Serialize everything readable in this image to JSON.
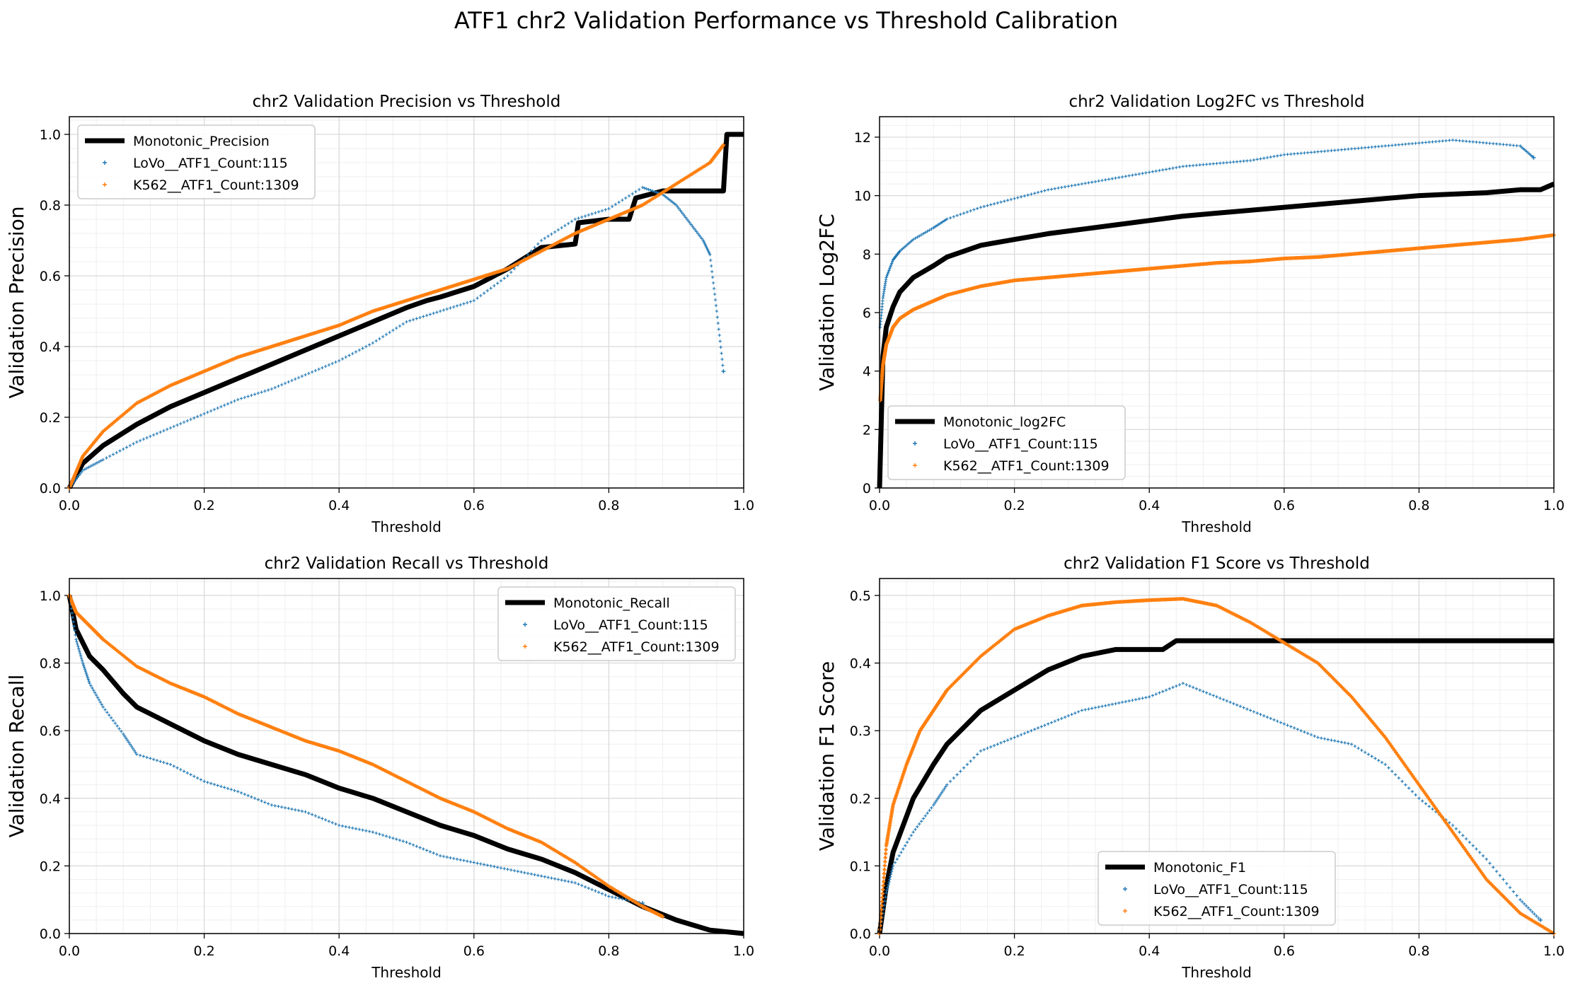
{
  "figure": {
    "suptitle": "ATF1 chr2 Validation Performance vs Threshold Calibration"
  },
  "colors": {
    "monotonic": "#000000",
    "lovo": "#1f77b4",
    "k562": "#ff7f0e",
    "grid": "#d9d9d9",
    "minor_grid": "#efefef"
  },
  "chart_data": [
    {
      "type": "scatter",
      "title": "chr2 Validation Precision vs Threshold",
      "xlabel": "Threshold",
      "ylabel": "Validation Precision",
      "xlim": [
        0,
        1
      ],
      "ylim": [
        0,
        1.05
      ],
      "xticks": [
        "0.0",
        "0.2",
        "0.4",
        "0.6",
        "0.8",
        "1.0"
      ],
      "xtick_values": [
        0,
        0.2,
        0.4,
        0.6,
        0.8,
        1.0
      ],
      "yticks": [
        "0.0",
        "0.2",
        "0.4",
        "0.6",
        "0.8",
        "1.0"
      ],
      "ytick_values": [
        0,
        0.2,
        0.4,
        0.6,
        0.8,
        1.0
      ],
      "legend_loc": "upper-left",
      "grid": true,
      "series": [
        {
          "name": "Monotonic_Precision",
          "kind": "line",
          "x": [
            0,
            0.02,
            0.05,
            0.1,
            0.15,
            0.2,
            0.25,
            0.3,
            0.35,
            0.4,
            0.45,
            0.5,
            0.53,
            0.55,
            0.6,
            0.65,
            0.7,
            0.75,
            0.755,
            0.8,
            0.83,
            0.84,
            0.88,
            0.95,
            0.97,
            0.975,
            1.0
          ],
          "y": [
            0.0,
            0.07,
            0.12,
            0.18,
            0.23,
            0.27,
            0.31,
            0.35,
            0.39,
            0.43,
            0.47,
            0.51,
            0.53,
            0.54,
            0.57,
            0.62,
            0.68,
            0.69,
            0.75,
            0.76,
            0.76,
            0.82,
            0.84,
            0.84,
            0.84,
            1.0,
            1.0
          ]
        },
        {
          "name": "LoVo__ATF1_Count:115",
          "kind": "scatter",
          "x": [
            0,
            0.02,
            0.05,
            0.1,
            0.15,
            0.2,
            0.25,
            0.3,
            0.35,
            0.4,
            0.45,
            0.5,
            0.55,
            0.6,
            0.65,
            0.7,
            0.75,
            0.8,
            0.85,
            0.88,
            0.9,
            0.92,
            0.94,
            0.95,
            0.96,
            0.97
          ],
          "y": [
            0.0,
            0.05,
            0.08,
            0.13,
            0.17,
            0.21,
            0.25,
            0.28,
            0.32,
            0.36,
            0.41,
            0.47,
            0.5,
            0.53,
            0.6,
            0.7,
            0.76,
            0.79,
            0.85,
            0.83,
            0.8,
            0.75,
            0.7,
            0.66,
            0.5,
            0.33
          ]
        },
        {
          "name": "K562__ATF1_Count:1309",
          "kind": "scatter",
          "x": [
            0,
            0.02,
            0.05,
            0.1,
            0.15,
            0.2,
            0.25,
            0.3,
            0.35,
            0.4,
            0.45,
            0.5,
            0.55,
            0.6,
            0.65,
            0.7,
            0.75,
            0.8,
            0.85,
            0.9,
            0.95,
            0.97
          ],
          "y": [
            0.0,
            0.09,
            0.16,
            0.24,
            0.29,
            0.33,
            0.37,
            0.4,
            0.43,
            0.46,
            0.5,
            0.53,
            0.56,
            0.59,
            0.62,
            0.67,
            0.72,
            0.76,
            0.8,
            0.86,
            0.92,
            0.97
          ]
        }
      ]
    },
    {
      "type": "scatter",
      "title": "chr2 Validation Log2FC vs Threshold",
      "xlabel": "Threshold",
      "ylabel": "Validation Log2FC",
      "xlim": [
        0,
        1
      ],
      "ylim": [
        0,
        12.7
      ],
      "xticks": [
        "0.0",
        "0.2",
        "0.4",
        "0.6",
        "0.8",
        "1.0"
      ],
      "xtick_values": [
        0,
        0.2,
        0.4,
        0.6,
        0.8,
        1.0
      ],
      "yticks": [
        "0",
        "2",
        "4",
        "6",
        "8",
        "10",
        "12"
      ],
      "ytick_values": [
        0,
        2,
        4,
        6,
        8,
        10,
        12
      ],
      "legend_loc": "lower-left",
      "grid": true,
      "series": [
        {
          "name": "Monotonic_log2FC",
          "kind": "line",
          "x": [
            0,
            0.005,
            0.01,
            0.02,
            0.03,
            0.05,
            0.08,
            0.1,
            0.15,
            0.2,
            0.25,
            0.3,
            0.35,
            0.4,
            0.45,
            0.5,
            0.55,
            0.6,
            0.65,
            0.7,
            0.75,
            0.8,
            0.85,
            0.9,
            0.95,
            0.98,
            1.0
          ],
          "y": [
            0.0,
            4.5,
            5.5,
            6.2,
            6.7,
            7.2,
            7.6,
            7.9,
            8.3,
            8.5,
            8.7,
            8.85,
            9.0,
            9.15,
            9.3,
            9.4,
            9.5,
            9.6,
            9.7,
            9.8,
            9.9,
            10.0,
            10.05,
            10.1,
            10.2,
            10.2,
            10.4
          ]
        },
        {
          "name": "LoVo__ATF1_Count:115",
          "kind": "scatter",
          "x": [
            0.001,
            0.005,
            0.01,
            0.02,
            0.03,
            0.05,
            0.08,
            0.1,
            0.15,
            0.2,
            0.25,
            0.3,
            0.35,
            0.4,
            0.45,
            0.5,
            0.55,
            0.6,
            0.65,
            0.7,
            0.75,
            0.8,
            0.85,
            0.9,
            0.95,
            0.97
          ],
          "y": [
            5.5,
            6.5,
            7.2,
            7.8,
            8.1,
            8.5,
            8.9,
            9.2,
            9.6,
            9.9,
            10.2,
            10.4,
            10.6,
            10.8,
            11.0,
            11.1,
            11.2,
            11.4,
            11.5,
            11.6,
            11.7,
            11.8,
            11.9,
            11.8,
            11.7,
            11.3
          ]
        },
        {
          "name": "K562__ATF1_Count:1309",
          "kind": "scatter",
          "x": [
            0.001,
            0.005,
            0.01,
            0.02,
            0.03,
            0.05,
            0.08,
            0.1,
            0.15,
            0.2,
            0.25,
            0.3,
            0.35,
            0.4,
            0.45,
            0.5,
            0.55,
            0.6,
            0.65,
            0.7,
            0.75,
            0.8,
            0.85,
            0.9,
            0.95,
            1.0
          ],
          "y": [
            3.0,
            4.2,
            4.9,
            5.5,
            5.8,
            6.1,
            6.4,
            6.6,
            6.9,
            7.1,
            7.2,
            7.3,
            7.4,
            7.5,
            7.6,
            7.7,
            7.75,
            7.85,
            7.9,
            8.0,
            8.1,
            8.2,
            8.3,
            8.4,
            8.5,
            8.65
          ]
        }
      ]
    },
    {
      "type": "scatter",
      "title": "chr2 Validation Recall vs Threshold",
      "xlabel": "Threshold",
      "ylabel": "Validation Recall",
      "xlim": [
        0,
        1
      ],
      "ylim": [
        0,
        1.05
      ],
      "xticks": [
        "0.0",
        "0.2",
        "0.4",
        "0.6",
        "0.8",
        "1.0"
      ],
      "xtick_values": [
        0,
        0.2,
        0.4,
        0.6,
        0.8,
        1.0
      ],
      "yticks": [
        "0.0",
        "0.2",
        "0.4",
        "0.6",
        "0.8",
        "1.0"
      ],
      "ytick_values": [
        0,
        0.2,
        0.4,
        0.6,
        0.8,
        1.0
      ],
      "legend_loc": "upper-right",
      "grid": true,
      "series": [
        {
          "name": "Monotonic_Recall",
          "kind": "line",
          "x": [
            0,
            0.01,
            0.03,
            0.05,
            0.08,
            0.1,
            0.15,
            0.2,
            0.25,
            0.3,
            0.35,
            0.4,
            0.45,
            0.5,
            0.55,
            0.6,
            0.65,
            0.7,
            0.75,
            0.8,
            0.85,
            0.9,
            0.95,
            1.0
          ],
          "y": [
            1.0,
            0.9,
            0.82,
            0.78,
            0.71,
            0.67,
            0.62,
            0.57,
            0.53,
            0.5,
            0.47,
            0.43,
            0.4,
            0.36,
            0.32,
            0.29,
            0.25,
            0.22,
            0.18,
            0.13,
            0.08,
            0.04,
            0.01,
            0.0
          ]
        },
        {
          "name": "LoVo__ATF1_Count:115",
          "kind": "scatter",
          "x": [
            0,
            0.01,
            0.02,
            0.03,
            0.05,
            0.08,
            0.1,
            0.15,
            0.2,
            0.25,
            0.3,
            0.35,
            0.4,
            0.45,
            0.5,
            0.55,
            0.6,
            0.65,
            0.7,
            0.75,
            0.8,
            0.85
          ],
          "y": [
            1.0,
            0.87,
            0.8,
            0.74,
            0.67,
            0.59,
            0.53,
            0.5,
            0.45,
            0.42,
            0.38,
            0.36,
            0.32,
            0.3,
            0.27,
            0.23,
            0.21,
            0.19,
            0.17,
            0.15,
            0.11,
            0.09
          ]
        },
        {
          "name": "K562__ATF1_Count:1309",
          "kind": "scatter",
          "x": [
            0,
            0.01,
            0.03,
            0.05,
            0.1,
            0.15,
            0.2,
            0.25,
            0.3,
            0.35,
            0.4,
            0.45,
            0.5,
            0.55,
            0.6,
            0.65,
            0.7,
            0.75,
            0.8,
            0.85,
            0.88
          ],
          "y": [
            1.0,
            0.95,
            0.91,
            0.87,
            0.79,
            0.74,
            0.7,
            0.65,
            0.61,
            0.57,
            0.54,
            0.5,
            0.45,
            0.4,
            0.36,
            0.31,
            0.27,
            0.21,
            0.14,
            0.08,
            0.05
          ]
        }
      ]
    },
    {
      "type": "scatter",
      "title": "chr2 Validation F1 Score vs Threshold",
      "xlabel": "Threshold",
      "ylabel": "Validation F1 Score",
      "xlim": [
        0,
        1
      ],
      "ylim": [
        0,
        0.525
      ],
      "xticks": [
        "0.0",
        "0.2",
        "0.4",
        "0.6",
        "0.8",
        "1.0"
      ],
      "xtick_values": [
        0,
        0.2,
        0.4,
        0.6,
        0.8,
        1.0
      ],
      "yticks": [
        "0.0",
        "0.1",
        "0.2",
        "0.3",
        "0.4",
        "0.5"
      ],
      "ytick_values": [
        0,
        0.1,
        0.2,
        0.3,
        0.4,
        0.5
      ],
      "legend_loc": "lower-center",
      "grid": true,
      "series": [
        {
          "name": "Monotonic_F1",
          "kind": "line",
          "x": [
            0,
            0.01,
            0.02,
            0.05,
            0.08,
            0.1,
            0.15,
            0.2,
            0.25,
            0.3,
            0.35,
            0.4,
            0.42,
            0.44,
            0.5,
            0.6,
            0.7,
            0.8,
            0.9,
            1.0
          ],
          "y": [
            0.0,
            0.07,
            0.12,
            0.2,
            0.25,
            0.28,
            0.33,
            0.36,
            0.39,
            0.41,
            0.42,
            0.42,
            0.42,
            0.433,
            0.433,
            0.433,
            0.433,
            0.433,
            0.433,
            0.433
          ]
        },
        {
          "name": "LoVo__ATF1_Count:115",
          "kind": "scatter",
          "x": [
            0,
            0.01,
            0.02,
            0.05,
            0.08,
            0.1,
            0.15,
            0.2,
            0.25,
            0.3,
            0.35,
            0.4,
            0.45,
            0.5,
            0.55,
            0.6,
            0.65,
            0.7,
            0.75,
            0.8,
            0.85,
            0.9,
            0.95,
            0.98
          ],
          "y": [
            0.0,
            0.06,
            0.1,
            0.15,
            0.19,
            0.22,
            0.27,
            0.29,
            0.31,
            0.33,
            0.34,
            0.35,
            0.37,
            0.35,
            0.33,
            0.31,
            0.29,
            0.28,
            0.25,
            0.2,
            0.16,
            0.11,
            0.05,
            0.02
          ]
        },
        {
          "name": "K562__ATF1_Count:1309",
          "kind": "scatter",
          "x": [
            0,
            0.01,
            0.02,
            0.04,
            0.06,
            0.08,
            0.1,
            0.15,
            0.2,
            0.25,
            0.3,
            0.35,
            0.4,
            0.45,
            0.5,
            0.55,
            0.6,
            0.65,
            0.7,
            0.75,
            0.8,
            0.85,
            0.9,
            0.95,
            1.0
          ],
          "y": [
            0.0,
            0.13,
            0.19,
            0.25,
            0.3,
            0.33,
            0.36,
            0.41,
            0.45,
            0.47,
            0.485,
            0.49,
            0.493,
            0.495,
            0.485,
            0.46,
            0.43,
            0.4,
            0.35,
            0.29,
            0.22,
            0.15,
            0.08,
            0.03,
            0.0
          ]
        }
      ]
    }
  ]
}
